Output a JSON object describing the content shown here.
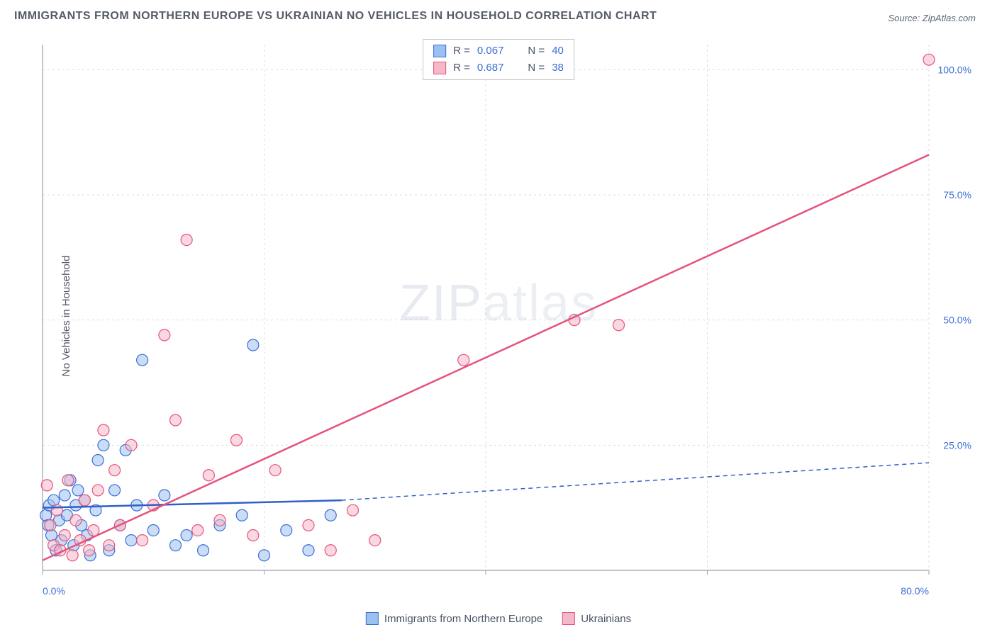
{
  "title": "IMMIGRANTS FROM NORTHERN EUROPE VS UKRAINIAN NO VEHICLES IN HOUSEHOLD CORRELATION CHART",
  "source": "Source: ZipAtlas.com",
  "ylabel": "No Vehicles in Household",
  "watermark": {
    "bold": "ZIP",
    "light": "atlas"
  },
  "chart": {
    "type": "scatter-with-regression",
    "background_color": "#ffffff",
    "grid_color": "#d9dde3",
    "axis_color": "#9aa0aa",
    "xlim": [
      0,
      80
    ],
    "ylim": [
      0,
      105
    ],
    "xtick_step": 20,
    "ytick_step": 25,
    "xtick_labels": [
      "0.0%",
      "",
      "",
      "",
      "80.0%"
    ],
    "ytick_labels": [
      "",
      "25.0%",
      "50.0%",
      "75.0%",
      "100.0%"
    ],
    "tick_label_color": "#3b6fd6",
    "tick_fontsize": 14,
    "marker_radius": 8,
    "marker_opacity": 0.55,
    "series": [
      {
        "name": "Immigrants from Northern Europe",
        "color_fill": "#9cc1f0",
        "color_stroke": "#3b6fd6",
        "R": 0.067,
        "N": 40,
        "points": [
          [
            0.3,
            11
          ],
          [
            0.5,
            9
          ],
          [
            0.6,
            13
          ],
          [
            0.8,
            7
          ],
          [
            1.0,
            14
          ],
          [
            1.2,
            4
          ],
          [
            1.5,
            10
          ],
          [
            1.7,
            6
          ],
          [
            2.0,
            15
          ],
          [
            2.2,
            11
          ],
          [
            2.5,
            18
          ],
          [
            2.8,
            5
          ],
          [
            3.0,
            13
          ],
          [
            3.2,
            16
          ],
          [
            3.5,
            9
          ],
          [
            3.8,
            14
          ],
          [
            4.0,
            7
          ],
          [
            4.3,
            3
          ],
          [
            4.8,
            12
          ],
          [
            5.0,
            22
          ],
          [
            5.5,
            25
          ],
          [
            6.0,
            4
          ],
          [
            6.5,
            16
          ],
          [
            7.0,
            9
          ],
          [
            7.5,
            24
          ],
          [
            8.0,
            6
          ],
          [
            8.5,
            13
          ],
          [
            9.0,
            42
          ],
          [
            10.0,
            8
          ],
          [
            11.0,
            15
          ],
          [
            12.0,
            5
          ],
          [
            13.0,
            7
          ],
          [
            14.5,
            4
          ],
          [
            16.0,
            9
          ],
          [
            18.0,
            11
          ],
          [
            19.0,
            45
          ],
          [
            20.0,
            3
          ],
          [
            22.0,
            8
          ],
          [
            24.0,
            4
          ],
          [
            26.0,
            11
          ]
        ],
        "regression": {
          "x1": 0,
          "y1": 12.5,
          "x2": 27,
          "y2": 14.0,
          "extend_to_x": 80,
          "extend_y": 21.5,
          "solid_end_x": 27,
          "width": 2.5,
          "color": "#2f5fc7",
          "dash": "6,5"
        }
      },
      {
        "name": "Ukrainians",
        "color_fill": "#f4b8c8",
        "color_stroke": "#e6537a",
        "R": 0.687,
        "N": 38,
        "points": [
          [
            0.4,
            17
          ],
          [
            0.7,
            9
          ],
          [
            1.0,
            5
          ],
          [
            1.3,
            12
          ],
          [
            1.6,
            4
          ],
          [
            2.0,
            7
          ],
          [
            2.3,
            18
          ],
          [
            2.7,
            3
          ],
          [
            3.0,
            10
          ],
          [
            3.4,
            6
          ],
          [
            3.8,
            14
          ],
          [
            4.2,
            4
          ],
          [
            4.6,
            8
          ],
          [
            5.0,
            16
          ],
          [
            5.5,
            28
          ],
          [
            6.0,
            5
          ],
          [
            6.5,
            20
          ],
          [
            7.0,
            9
          ],
          [
            8.0,
            25
          ],
          [
            9.0,
            6
          ],
          [
            10.0,
            13
          ],
          [
            11.0,
            47
          ],
          [
            12.0,
            30
          ],
          [
            13.0,
            66
          ],
          [
            14.0,
            8
          ],
          [
            15.0,
            19
          ],
          [
            16.0,
            10
          ],
          [
            17.5,
            26
          ],
          [
            19.0,
            7
          ],
          [
            21.0,
            20
          ],
          [
            24.0,
            9
          ],
          [
            26.0,
            4
          ],
          [
            28.0,
            12
          ],
          [
            30.0,
            6
          ],
          [
            38.0,
            42
          ],
          [
            48.0,
            50
          ],
          [
            52.0,
            49
          ],
          [
            80.0,
            102
          ]
        ],
        "regression": {
          "x1": 0,
          "y1": 2,
          "x2": 80,
          "y2": 83,
          "width": 2.5,
          "color": "#e6537a"
        }
      }
    ]
  },
  "legend_box": [
    {
      "swatch_fill": "#9cc1f0",
      "swatch_stroke": "#3b6fd6",
      "r_label": "R =",
      "r_val": "0.067",
      "n_label": "N =",
      "n_val": "40"
    },
    {
      "swatch_fill": "#f4b8c8",
      "swatch_stroke": "#e6537a",
      "r_label": "R =",
      "r_val": "0.687",
      "n_label": "N =",
      "n_val": "38"
    }
  ],
  "bottom_legend": [
    {
      "swatch_fill": "#9cc1f0",
      "swatch_stroke": "#3b6fd6",
      "label": "Immigrants from Northern Europe"
    },
    {
      "swatch_fill": "#f4b8c8",
      "swatch_stroke": "#e6537a",
      "label": "Ukrainians"
    }
  ]
}
